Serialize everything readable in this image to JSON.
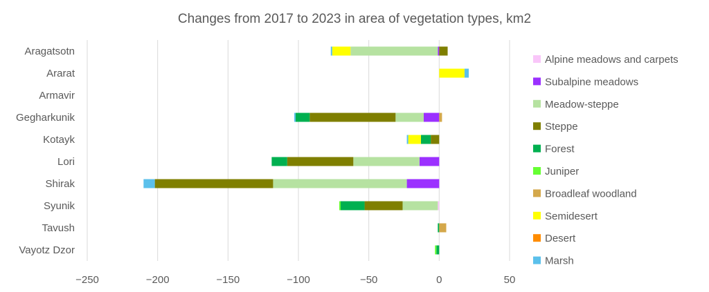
{
  "chart_data": {
    "type": "bar",
    "orientation": "horizontal",
    "stacked": true,
    "title": "Changes from 2017 to 2023 in area of vegetation types, km2",
    "xlabel": "",
    "ylabel": "",
    "xlim": [
      -250,
      50
    ],
    "xticks": [
      -250,
      -200,
      -150,
      -100,
      -50,
      0,
      50
    ],
    "grid": "vertical",
    "legend_position": "right",
    "categories": [
      "Aragatsotn",
      "Ararat",
      "Armavir",
      "Gegharkunik",
      "Kotayk",
      "Lori",
      "Shirak",
      "Syunik",
      "Tavush",
      "Vayotz Dzor"
    ],
    "series": [
      {
        "name": "Alpine meadows and carpets",
        "color": "#f9c6f9",
        "values": [
          0,
          0,
          0,
          0,
          0,
          0,
          0,
          -1,
          0,
          0
        ]
      },
      {
        "name": "Subalpine meadows",
        "color": "#9b30ff",
        "values": [
          -1,
          0,
          0,
          -11,
          0,
          -14,
          -23,
          0,
          0,
          0
        ]
      },
      {
        "name": "Meadow-steppe",
        "color": "#b6e2a1",
        "values": [
          -62,
          0,
          0,
          -20,
          0,
          -47,
          -95,
          -25,
          0,
          0
        ]
      },
      {
        "name": "Steppe",
        "color": "#7f7f00",
        "values": [
          6,
          0,
          0,
          -61,
          -6,
          -47,
          -84,
          -27,
          0,
          0
        ]
      },
      {
        "name": "Forest",
        "color": "#00b050",
        "values": [
          0,
          0,
          0,
          -10,
          -7,
          -11,
          0,
          -17,
          -1,
          -2
        ]
      },
      {
        "name": "Juniper",
        "color": "#66ff33",
        "values": [
          0,
          0,
          0,
          0,
          0,
          0,
          0,
          -1,
          0,
          -1
        ]
      },
      {
        "name": "Broadleaf woodland",
        "color": "#d4a84b",
        "values": [
          0,
          0,
          0,
          2,
          0,
          0,
          0,
          0,
          5,
          0
        ]
      },
      {
        "name": "Semidesert",
        "color": "#ffff00",
        "values": [
          -13,
          18,
          0,
          0,
          -9,
          0,
          0,
          0,
          0,
          0
        ]
      },
      {
        "name": "Desert",
        "color": "#ff8c00",
        "values": [
          0,
          0,
          0,
          0,
          0,
          0,
          0,
          0,
          0,
          0
        ]
      },
      {
        "name": "Marsh",
        "color": "#5bc0eb",
        "values": [
          -1,
          3,
          0,
          -1,
          -1,
          0,
          -8,
          0,
          0,
          0
        ]
      }
    ]
  }
}
